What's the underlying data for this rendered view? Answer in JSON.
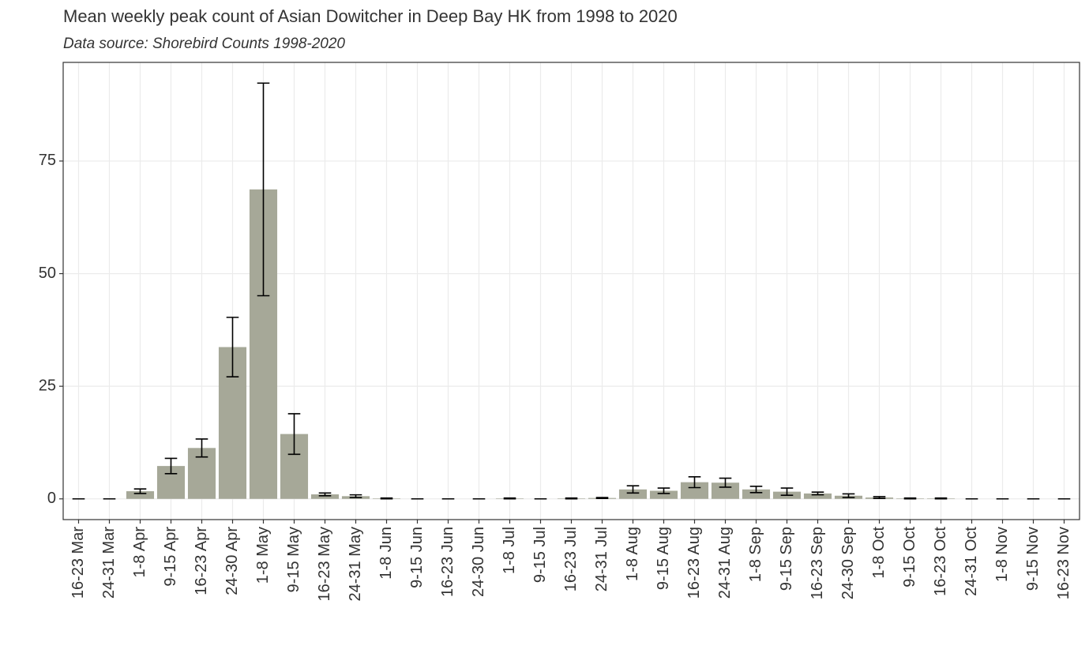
{
  "chart_data": {
    "type": "bar",
    "title": "Mean weekly peak count of Asian Dowitcher in Deep Bay HK from 1998 to 2020",
    "subtitle": "Data source: Shorebird Counts 1998-2020",
    "categories": [
      "16-23 Mar",
      "24-31 Mar",
      "1-8 Apr",
      "9-15 Apr",
      "16-23 Apr",
      "24-30 Apr",
      "1-8 May",
      "9-15 May",
      "16-23 May",
      "24-31 May",
      "1-8 Jun",
      "9-15 Jun",
      "16-23 Jun",
      "24-30 Jun",
      "1-8 Jul",
      "9-15 Jul",
      "16-23 Jul",
      "24-31 Jul",
      "1-8 Aug",
      "9-15 Aug",
      "16-23 Aug",
      "24-31 Aug",
      "1-8 Sep",
      "9-15 Sep",
      "16-23 Sep",
      "24-30 Sep",
      "1-8 Oct",
      "9-15 Oct",
      "16-23 Oct",
      "24-31 Oct",
      "1-8 Nov",
      "9-15 Nov",
      "16-23 Nov"
    ],
    "values": [
      0,
      0,
      1.7,
      7.3,
      11.3,
      33.7,
      68.7,
      14.4,
      1.0,
      0.6,
      0.1,
      0,
      0,
      0,
      0.1,
      0,
      0.1,
      0.2,
      2.1,
      1.8,
      3.7,
      3.6,
      2.1,
      1.6,
      1.2,
      0.7,
      0.3,
      0.1,
      0.1,
      0,
      0,
      0,
      0
    ],
    "errors": [
      0,
      0,
      0.5,
      1.7,
      2.0,
      6.6,
      23.6,
      4.5,
      0.3,
      0.3,
      0.1,
      0,
      0,
      0,
      0.1,
      0,
      0.1,
      0.1,
      0.8,
      0.6,
      1.2,
      1.0,
      0.7,
      0.8,
      0.3,
      0.4,
      0.2,
      0.1,
      0.1,
      0,
      0,
      0,
      0
    ],
    "color": "#a6a898",
    "ylim": [
      -4.6,
      96.9
    ],
    "yticks": [
      0,
      25,
      50,
      75
    ],
    "grid": true
  }
}
